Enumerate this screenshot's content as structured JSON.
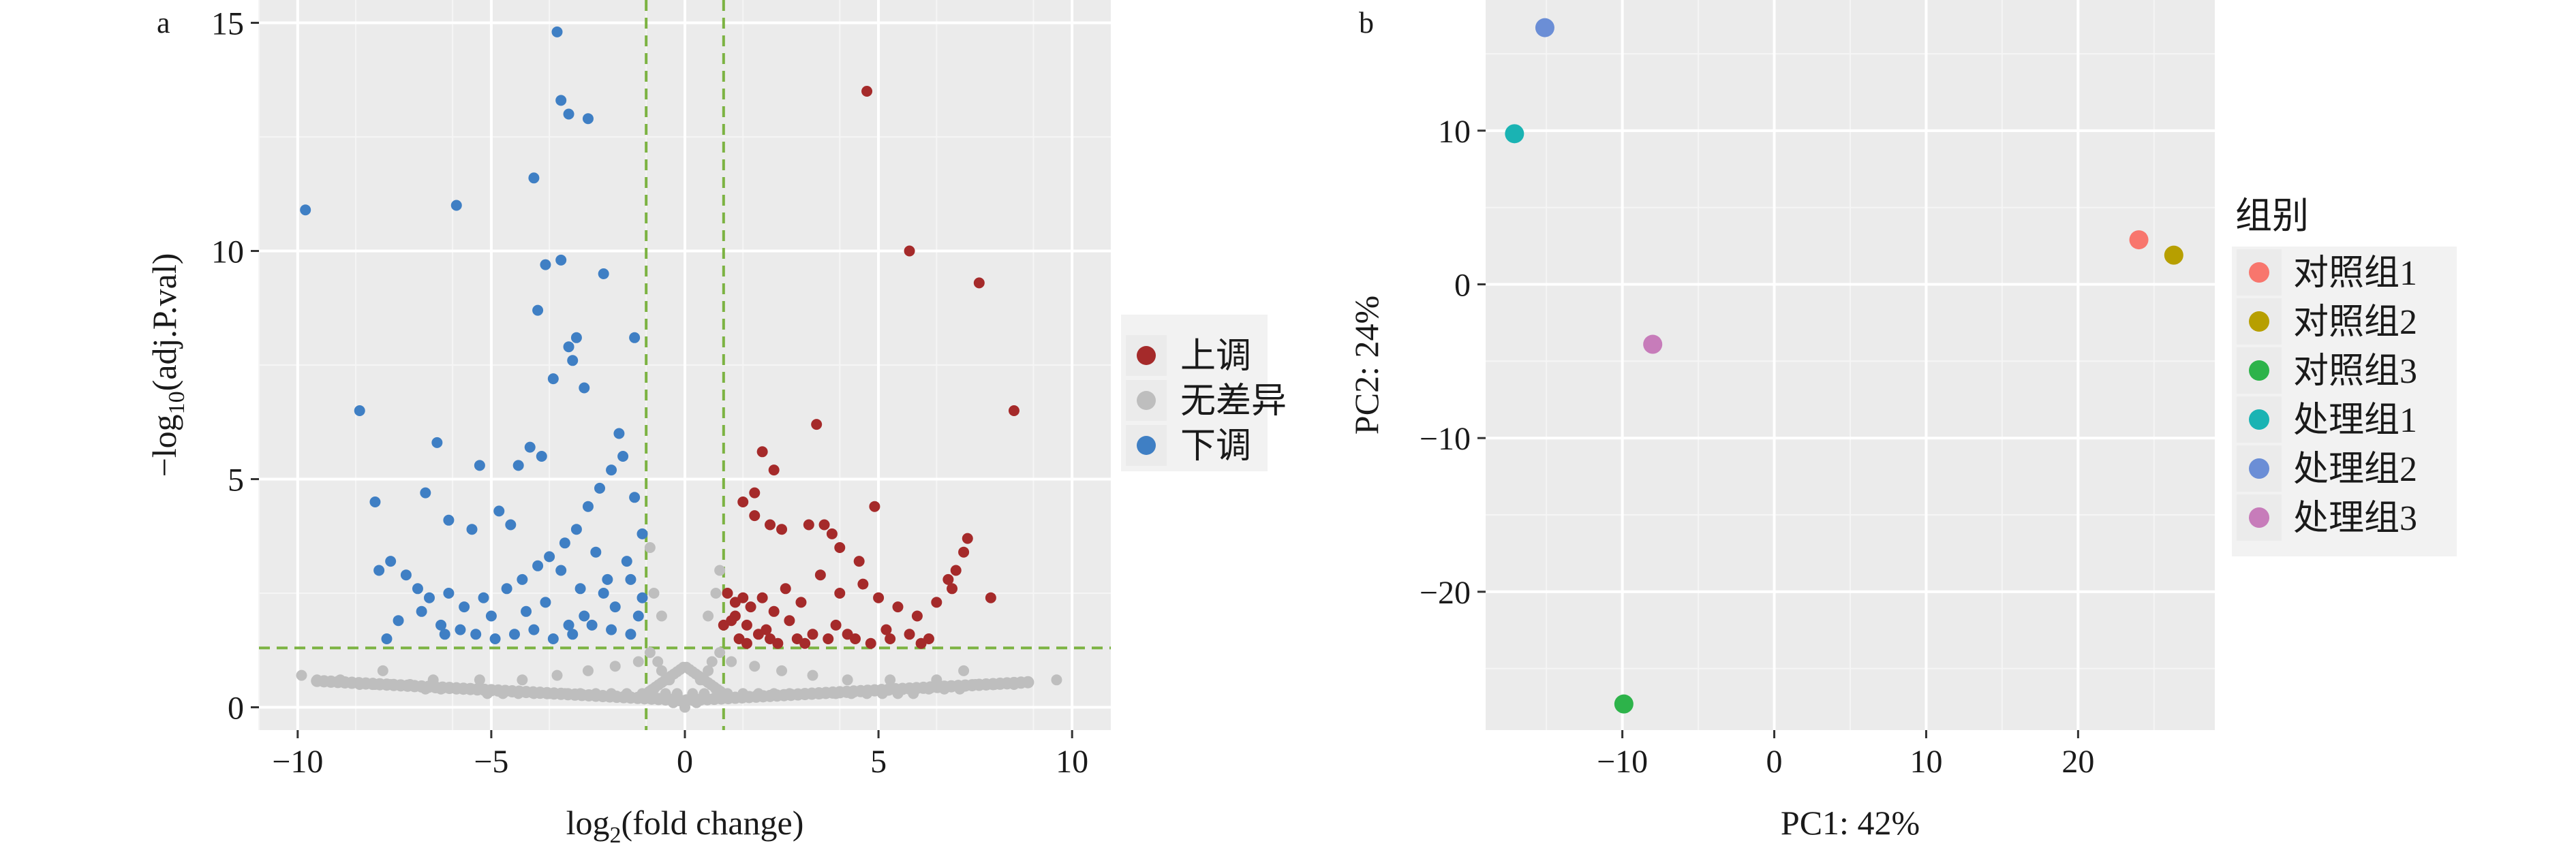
{
  "chart_data": [
    {
      "panel_label": "a",
      "type": "scatter",
      "xlabel": {
        "base": "log",
        "sub": "2",
        "rest": "(fold change)"
      },
      "ylabel": {
        "pre": "−log",
        "sub": "10",
        "rest": "(adj.P.val)"
      },
      "xlim": [
        -11,
        11
      ],
      "ylim": [
        -0.5,
        15.5
      ],
      "xticks": [
        -10,
        -5,
        0,
        5,
        10
      ],
      "xtick_labels": [
        "−10",
        "−5",
        "0",
        "5",
        "10"
      ],
      "yticks": [
        0,
        5,
        10,
        15
      ],
      "ytick_labels": [
        "0",
        "5",
        "10",
        "15"
      ],
      "grid": true,
      "background": "#ebebeb",
      "threshold_lines": {
        "x": [
          -1,
          1
        ],
        "y": 1.3,
        "color": "#7cb342",
        "dash": true
      },
      "legend": {
        "position": "right",
        "entries": [
          {
            "label": "上调",
            "color": "#a52a2a"
          },
          {
            "label": "无差异",
            "color": "#bebebe"
          },
          {
            "label": "下调",
            "color": "#3f7fc4"
          }
        ]
      },
      "series": [
        {
          "name": "上调",
          "color": "#a52a2a",
          "x": [
            4.7,
            5.8,
            7.6,
            8.5,
            3.4,
            2.0,
            2.3,
            1.8,
            1.5,
            1.8,
            2.2,
            2.5,
            3.2,
            3.6,
            3.8,
            4.0,
            4.9,
            4.5,
            7.3,
            7.2,
            7.0,
            6.8,
            6.9,
            7.9,
            1.1,
            1.3,
            1.5,
            1.7,
            2.0,
            2.3,
            2.6,
            3.0,
            3.5,
            4.0,
            4.6,
            5.0,
            5.5,
            6.0,
            6.5,
            1.2,
            1.6,
            2.1,
            2.7,
            3.3,
            3.9,
            4.4,
            5.2,
            5.8,
            6.3,
            1.4,
            1.9,
            2.4,
            2.9,
            4.2,
            1.0,
            1.3,
            1.6,
            2.2,
            3.1,
            3.7,
            4.8,
            5.3,
            6.1
          ],
          "y": [
            13.5,
            10.0,
            9.3,
            6.5,
            6.2,
            5.6,
            5.2,
            4.7,
            4.5,
            4.2,
            4.0,
            3.9,
            4.0,
            4.0,
            3.8,
            3.5,
            4.4,
            3.2,
            3.7,
            3.4,
            3.0,
            2.8,
            2.6,
            2.4,
            2.5,
            2.3,
            2.4,
            2.2,
            2.4,
            2.1,
            2.6,
            2.3,
            2.9,
            2.5,
            2.7,
            2.4,
            2.2,
            2.0,
            2.3,
            1.9,
            1.8,
            1.7,
            1.9,
            1.6,
            1.8,
            1.5,
            1.7,
            1.6,
            1.5,
            1.5,
            1.6,
            1.4,
            1.5,
            1.6,
            1.8,
            2.0,
            1.4,
            1.5,
            1.4,
            1.5,
            1.4,
            1.5,
            1.4
          ]
        },
        {
          "name": "无差异",
          "color": "#bebebe",
          "x": [
            -9.9,
            -9.5,
            -8.9,
            -8.4,
            -8.0,
            -7.6,
            -7.1,
            -6.7,
            -6.3,
            -5.9,
            -5.5,
            -5.1,
            -4.7,
            -4.3,
            -3.9,
            -3.5,
            -3.1,
            -2.7,
            -2.3,
            -1.9,
            -1.5,
            -1.1,
            -0.8,
            -0.5,
            -0.3,
            0.0,
            0.3,
            0.5,
            0.8,
            1.1,
            1.5,
            1.9,
            2.3,
            2.7,
            3.1,
            3.5,
            3.9,
            4.3,
            4.7,
            5.1,
            5.5,
            5.9,
            6.3,
            6.7,
            7.1,
            7.5,
            8.0,
            8.5,
            9.6,
            -0.9,
            -0.7,
            -0.6,
            -0.4,
            -0.2,
            0.2,
            0.4,
            0.6,
            0.7,
            0.9,
            -1.2,
            -1.8,
            -2.5,
            -3.3,
            -4.2,
            -5.3,
            -6.5,
            1.2,
            1.8,
            2.5,
            3.3,
            4.2,
            5.3,
            6.5,
            -0.8,
            -0.6,
            0.6,
            0.8,
            -0.9,
            0.9,
            -7.8,
            7.2
          ],
          "y": [
            0.7,
            0.6,
            0.6,
            0.5,
            0.5,
            0.5,
            0.5,
            0.4,
            0.4,
            0.4,
            0.4,
            0.3,
            0.3,
            0.3,
            0.3,
            0.3,
            0.3,
            0.3,
            0.3,
            0.3,
            0.3,
            0.3,
            0.4,
            0.3,
            0.1,
            0.0,
            0.1,
            0.3,
            0.4,
            0.3,
            0.3,
            0.3,
            0.3,
            0.3,
            0.3,
            0.3,
            0.3,
            0.3,
            0.3,
            0.3,
            0.3,
            0.3,
            0.4,
            0.4,
            0.4,
            0.5,
            0.5,
            0.5,
            0.6,
            1.2,
            1.0,
            0.8,
            0.6,
            0.3,
            0.3,
            0.6,
            0.8,
            1.0,
            1.2,
            1.0,
            0.9,
            0.8,
            0.7,
            0.6,
            0.6,
            0.6,
            1.0,
            0.9,
            0.8,
            0.7,
            0.6,
            0.6,
            0.6,
            2.5,
            2.0,
            2.0,
            2.5,
            3.5,
            3.0,
            0.8,
            0.8
          ]
        },
        {
          "name": "下调",
          "color": "#3f7fc4",
          "x": [
            -3.3,
            -3.2,
            -3.0,
            -2.5,
            -9.8,
            -5.9,
            -3.9,
            -3.6,
            -3.2,
            -3.8,
            -2.1,
            -8.4,
            -2.8,
            -3.0,
            -2.9,
            -3.4,
            -2.6,
            -1.3,
            -5.3,
            -4.0,
            -1.7,
            -6.4,
            -4.3,
            -3.7,
            -6.7,
            -8.0,
            -6.1,
            -4.8,
            -5.5,
            -4.5,
            -7.6,
            -7.9,
            -7.2,
            -6.9,
            -6.6,
            -6.1,
            -5.7,
            -5.2,
            -4.6,
            -4.2,
            -3.8,
            -3.5,
            -3.1,
            -2.8,
            -2.5,
            -2.2,
            -1.9,
            -1.6,
            -1.3,
            -1.1,
            -7.7,
            -7.4,
            -6.8,
            -6.3,
            -5.8,
            -5.4,
            -4.9,
            -4.4,
            -3.9,
            -3.4,
            -2.9,
            -2.4,
            -1.9,
            -1.4,
            -1.2,
            -2.0,
            -2.7,
            -3.6,
            -4.1,
            -5.0,
            -6.2,
            -1.5,
            -2.3,
            -3.2,
            -1.1,
            -1.8,
            -2.6,
            -3.0,
            -1.4,
            -2.1
          ],
          "y": [
            14.8,
            13.3,
            13.0,
            12.9,
            10.9,
            11.0,
            11.6,
            9.7,
            9.8,
            8.7,
            9.5,
            6.5,
            8.1,
            7.9,
            7.6,
            7.2,
            7.0,
            8.1,
            5.3,
            5.7,
            6.0,
            5.8,
            5.3,
            5.5,
            4.7,
            4.5,
            4.1,
            4.3,
            3.9,
            4.0,
            3.2,
            3.0,
            2.9,
            2.6,
            2.4,
            2.5,
            2.2,
            2.4,
            2.6,
            2.8,
            3.1,
            3.3,
            3.6,
            3.9,
            4.4,
            4.8,
            5.2,
            5.5,
            4.6,
            3.8,
            1.5,
            1.9,
            2.1,
            1.8,
            1.7,
            1.6,
            1.5,
            1.6,
            1.7,
            1.5,
            1.6,
            1.8,
            1.7,
            1.6,
            2.0,
            2.8,
            2.6,
            2.3,
            2.1,
            2.0,
            1.6,
            3.2,
            3.4,
            3.0,
            2.4,
            2.2,
            2.0,
            1.8,
            2.8,
            2.5
          ]
        }
      ]
    },
    {
      "panel_label": "b",
      "type": "scatter",
      "xlabel": "PC1: 42%",
      "ylabel": "PC2: 24%",
      "xlim": [
        -19,
        29
      ],
      "ylim": [
        -29,
        18.5
      ],
      "xticks": [
        -10,
        0,
        10,
        20
      ],
      "xtick_labels": [
        "−10",
        "0",
        "10",
        "20"
      ],
      "yticks": [
        -20,
        -10,
        0,
        10
      ],
      "ytick_labels": [
        "−20",
        "−10",
        "0",
        "10"
      ],
      "grid": true,
      "background": "#ebebeb",
      "legend": {
        "title": "组别",
        "position": "right",
        "entries": [
          {
            "label": "对照组1",
            "color": "#f8766d"
          },
          {
            "label": "对照组2",
            "color": "#b79f00"
          },
          {
            "label": "对照组3",
            "color": "#2db34a"
          },
          {
            "label": "处理组1",
            "color": "#1ab3b3"
          },
          {
            "label": "处理组2",
            "color": "#6b8ed6"
          },
          {
            "label": "处理组3",
            "color": "#c77cba"
          }
        ]
      },
      "points": [
        {
          "group": "对照组1",
          "x": 24.0,
          "y": 2.9,
          "color": "#f8766d"
        },
        {
          "group": "对照组2",
          "x": 26.3,
          "y": 1.9,
          "color": "#b79f00"
        },
        {
          "group": "对照组3",
          "x": -9.9,
          "y": -27.3,
          "color": "#2db34a"
        },
        {
          "group": "处理组1",
          "x": -17.1,
          "y": 9.8,
          "color": "#1ab3b3"
        },
        {
          "group": "处理组2",
          "x": -15.1,
          "y": 16.7,
          "color": "#6b8ed6"
        },
        {
          "group": "处理组3",
          "x": -8.0,
          "y": -3.9,
          "color": "#c77cba"
        }
      ]
    }
  ]
}
